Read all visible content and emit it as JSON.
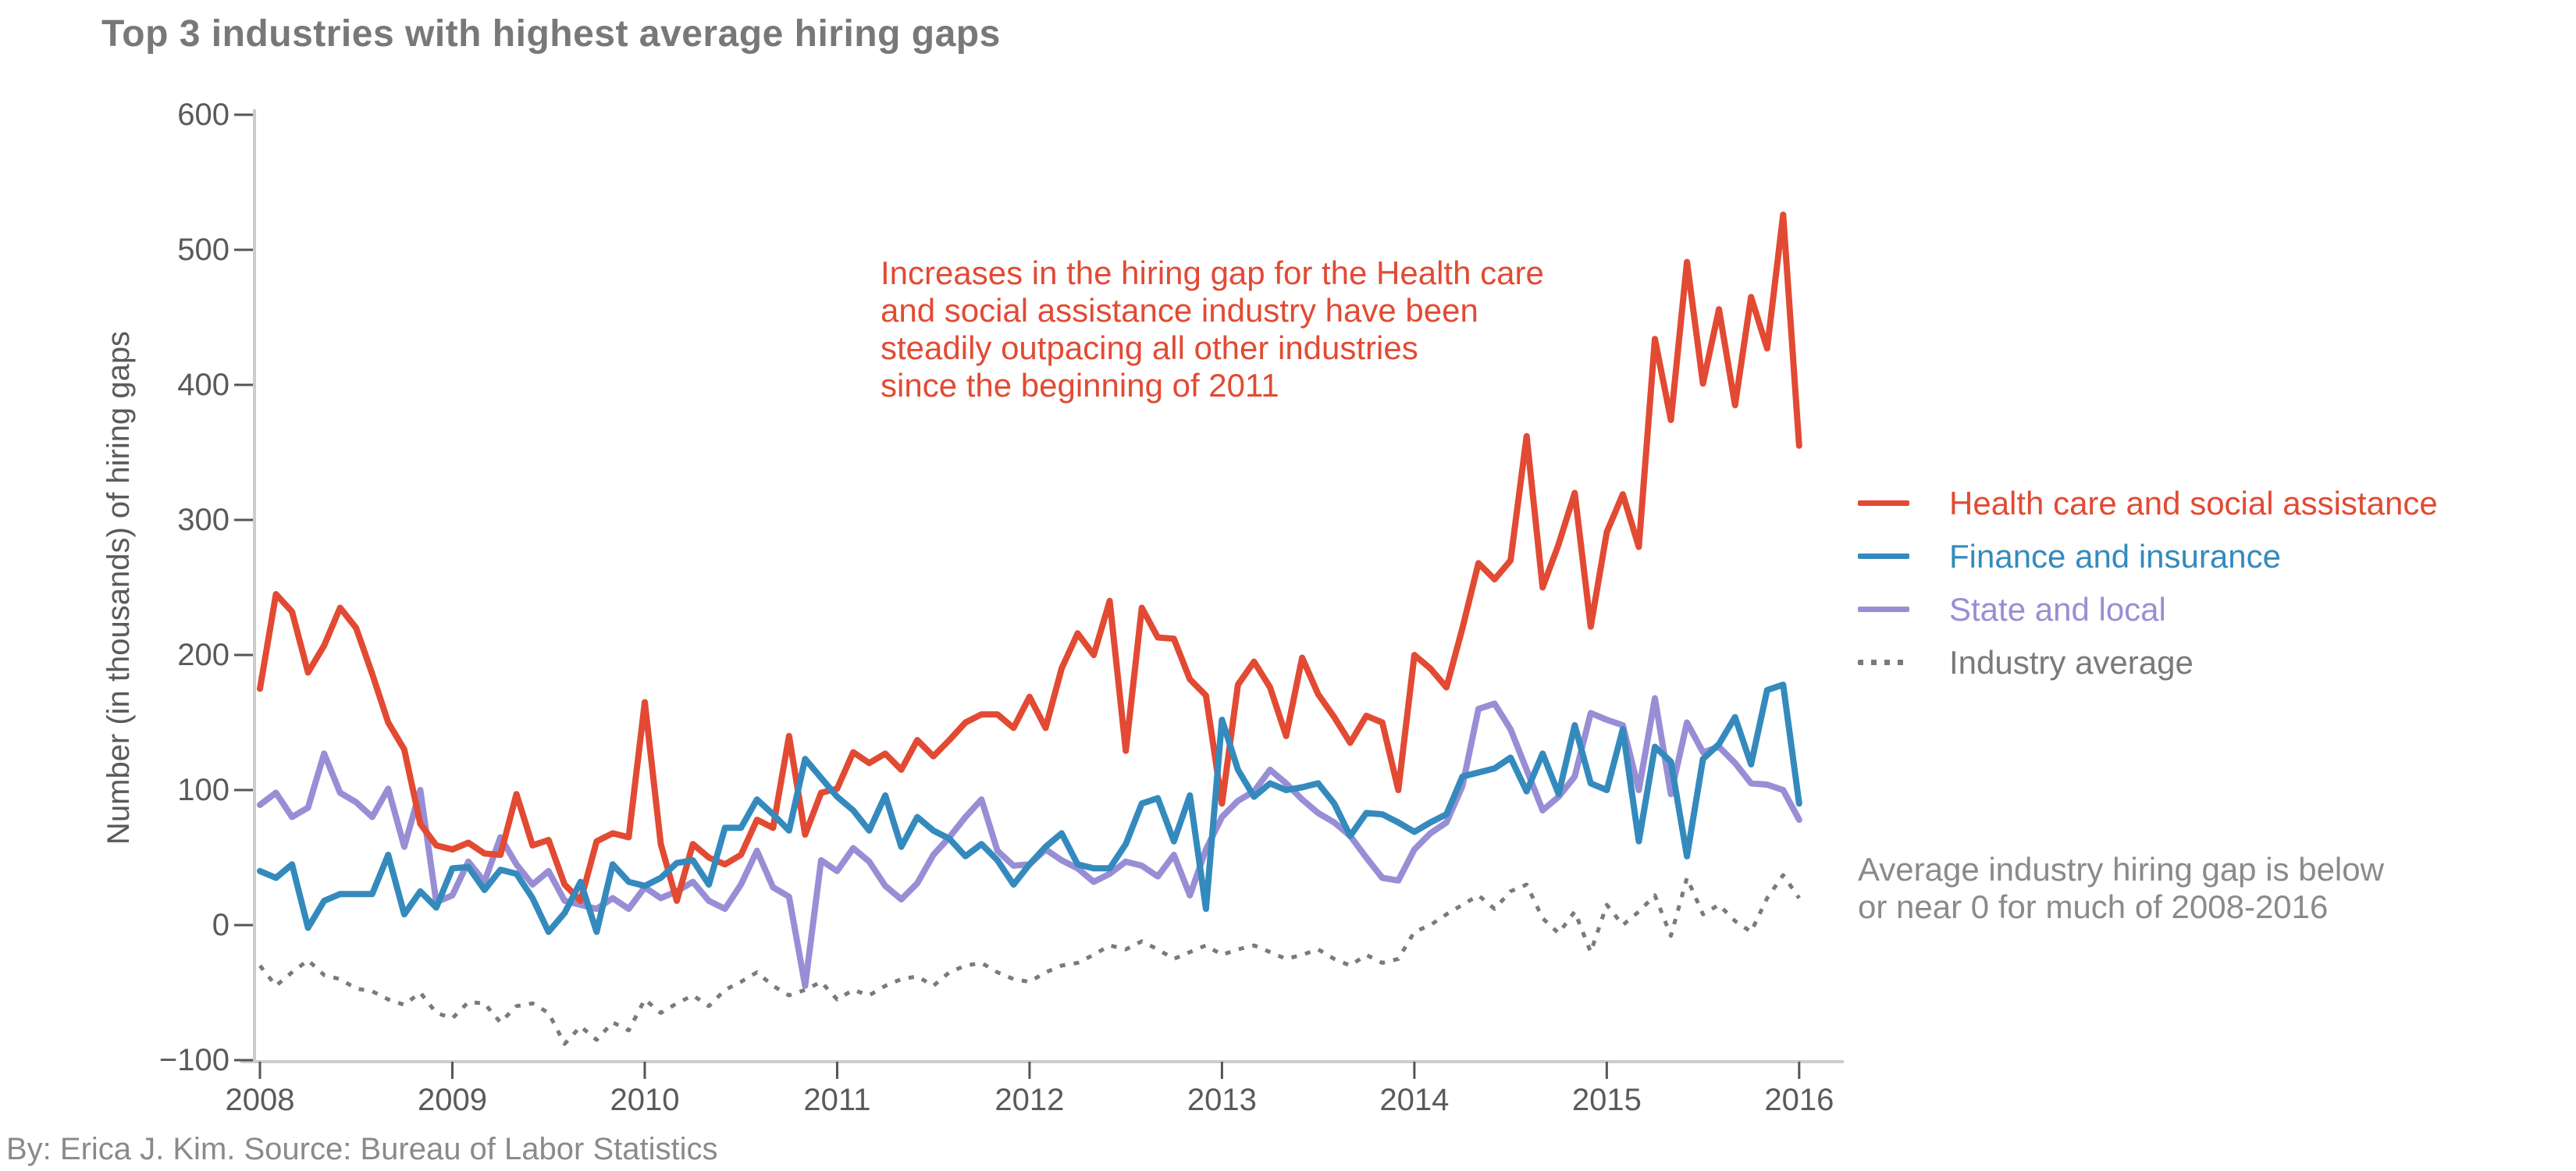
{
  "title": "Top 3 industries with highest average hiring gaps",
  "footer": "By: Erica J. Kim. Source: Bureau of Labor Statistics",
  "y_axis_label": "Number (in thousands) of hiring gaps",
  "colors": {
    "health_care": "#E24A33",
    "finance": "#348ABD",
    "state_local": "#988ED5",
    "industry_average": "#7A7A7A",
    "title_text": "#787878",
    "tick_text": "#5A5A5A",
    "spine": "#CCCCCC",
    "tick_mark": "#555555",
    "footer_text": "#8A8A8A"
  },
  "annotations": {
    "health_care_note": {
      "color": "#E24A33",
      "lines": [
        "Increases in the hiring gap for the Health care",
        "and social assistance industry have been",
        "steadily outpacing all other industries",
        "since the beginning of 2011"
      ]
    },
    "industry_average_note": {
      "color": "#8A8A8A",
      "lines": [
        "Average industry hiring gap is below",
        "or near 0 for much of 2008-2016"
      ]
    }
  },
  "legend": [
    {
      "label": "Health care and social assistance",
      "color": "#E24A33",
      "style": "solid"
    },
    {
      "label": "Finance and insurance",
      "color": "#348ABD",
      "style": "solid"
    },
    {
      "label": "State and local",
      "color": "#988ED5",
      "style": "solid"
    },
    {
      "label": "Industry average",
      "color": "#7A7A7A",
      "style": "dotted"
    }
  ],
  "chart_data": {
    "type": "line",
    "title": "Top 3 industries with highest average hiring gaps",
    "xlabel": "",
    "ylabel": "Number (in thousands) of hiring gaps",
    "x_unit": "month",
    "x_start": "2008-01",
    "x_end": "2016-01",
    "points_per_series": 97,
    "ylim": [
      -100,
      600
    ],
    "grid": false,
    "legend_position": "right",
    "y_ticks": [
      {
        "value": 600,
        "label": "600"
      },
      {
        "value": 500,
        "label": "500"
      },
      {
        "value": 400,
        "label": "400"
      },
      {
        "value": 300,
        "label": "300"
      },
      {
        "value": 200,
        "label": "200"
      },
      {
        "value": 100,
        "label": "100"
      },
      {
        "value": 0,
        "label": "0"
      },
      {
        "value": -100,
        "label": "−100"
      }
    ],
    "x_ticks": [
      "2008",
      "2009",
      "2010",
      "2011",
      "2012",
      "2013",
      "2014",
      "2015",
      "2016"
    ],
    "series": [
      {
        "name": "Health care and social assistance",
        "color": "#E24A33",
        "style": "solid",
        "values": [
          175,
          245,
          232,
          187,
          207,
          235,
          220,
          186,
          150,
          130,
          75,
          59,
          56,
          61,
          53,
          52,
          97,
          59,
          63,
          30,
          18,
          62,
          68,
          65,
          165,
          60,
          18,
          60,
          50,
          45,
          52,
          78,
          72,
          140,
          67,
          98,
          101,
          128,
          120,
          127,
          115,
          137,
          125,
          137,
          150,
          156,
          156,
          146,
          169,
          146,
          190,
          216,
          200,
          240,
          129,
          235,
          213,
          212,
          182,
          170,
          90,
          178,
          195,
          176,
          140,
          198,
          171,
          154,
          135,
          155,
          150,
          100,
          200,
          190,
          176,
          220,
          268,
          256,
          270,
          362,
          250,
          282,
          320,
          221,
          291,
          319,
          280,
          434,
          374,
          491,
          401,
          456,
          385,
          465,
          427,
          526,
          355
        ]
      },
      {
        "name": "Finance and insurance",
        "color": "#348ABD",
        "style": "solid",
        "values": [
          40,
          35,
          45,
          -2,
          18,
          23,
          23,
          23,
          52,
          8,
          25,
          13,
          42,
          43,
          26,
          41,
          38,
          20,
          -5,
          9,
          32,
          -5,
          45,
          32,
          29,
          35,
          46,
          48,
          30,
          72,
          72,
          93,
          82,
          70,
          123,
          109,
          95,
          85,
          70,
          96,
          58,
          80,
          70,
          64,
          51,
          60,
          48,
          30,
          45,
          58,
          68,
          45,
          42,
          42,
          60,
          90,
          94,
          62,
          96,
          12,
          152,
          115,
          95,
          105,
          100,
          102,
          105,
          90,
          66,
          83,
          82,
          76,
          69,
          76,
          82,
          110,
          113,
          116,
          124,
          99,
          127,
          97,
          148,
          105,
          100,
          145,
          62,
          132,
          121,
          51,
          123,
          134,
          154,
          119,
          174,
          178,
          90
        ]
      },
      {
        "name": "State and local",
        "color": "#988ED5",
        "style": "solid",
        "values": [
          89,
          98,
          80,
          87,
          127,
          98,
          91,
          80,
          101,
          58,
          100,
          17,
          22,
          47,
          32,
          65,
          45,
          30,
          40,
          18,
          15,
          12,
          20,
          12,
          28,
          20,
          25,
          32,
          18,
          12,
          30,
          55,
          28,
          21,
          -45,
          48,
          40,
          57,
          47,
          29,
          19,
          31,
          52,
          65,
          80,
          93,
          55,
          44,
          45,
          56,
          48,
          42,
          32,
          38,
          47,
          44,
          36,
          52,
          22,
          56,
          80,
          92,
          99,
          115,
          105,
          93,
          83,
          76,
          66,
          50,
          35,
          33,
          56,
          68,
          76,
          103,
          160,
          164,
          145,
          115,
          85,
          95,
          110,
          157,
          152,
          148,
          100,
          168,
          97,
          150,
          128,
          132,
          120,
          105,
          104,
          100,
          78
        ]
      },
      {
        "name": "Industry average",
        "color": "#7A7A7A",
        "style": "dotted",
        "values": [
          -30,
          -45,
          -35,
          -26,
          -37,
          -40,
          -47,
          -49,
          -55,
          -59,
          -50,
          -65,
          -69,
          -57,
          -58,
          -72,
          -60,
          -58,
          -65,
          -88,
          -75,
          -85,
          -72,
          -78,
          -55,
          -65,
          -58,
          -52,
          -60,
          -48,
          -42,
          -35,
          -45,
          -52,
          -48,
          -42,
          -55,
          -48,
          -52,
          -45,
          -40,
          -38,
          -45,
          -35,
          -30,
          -28,
          -35,
          -40,
          -42,
          -35,
          -30,
          -28,
          -22,
          -15,
          -18,
          -12,
          -18,
          -25,
          -20,
          -15,
          -22,
          -18,
          -15,
          -20,
          -25,
          -22,
          -18,
          -25,
          -30,
          -22,
          -28,
          -25,
          -5,
          0,
          8,
          15,
          22,
          12,
          25,
          30,
          5,
          -6,
          10,
          -20,
          15,
          0,
          10,
          22,
          -8,
          35,
          8,
          15,
          3,
          -5,
          20,
          37,
          20
        ]
      }
    ]
  }
}
